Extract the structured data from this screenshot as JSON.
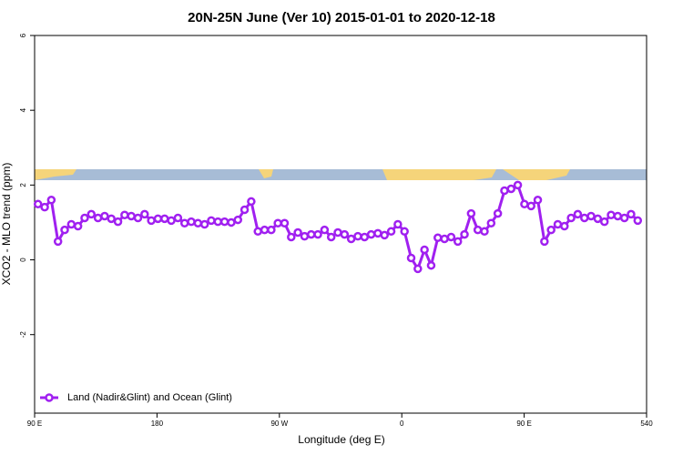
{
  "chart_data": {
    "type": "line",
    "title": "20N-25N June (Ver 10)   2015-01-01 to 2020-12-18",
    "x_label": "Longitude (deg E)",
    "y_label": "XCO2 - MLO trend (ppm)",
    "xlim": [
      90,
      540
    ],
    "xticks": [
      {
        "value": 90,
        "label": "90 E"
      },
      180,
      {
        "value": 270,
        "label": "90 W"
      },
      {
        "value": 360,
        "label": "0"
      },
      {
        "value": 450,
        "label": "90 E"
      },
      540
    ],
    "ylim": [
      -4.1,
      6
    ],
    "yticks": [
      -2,
      0,
      2,
      4,
      6
    ],
    "legend": "bottom-left",
    "series": [
      {
        "name": "Land (Nadir&Glint) and Ocean (Glint)",
        "color": "#a020f0",
        "x": [
          92.5,
          97.4,
          102.3,
          107.2,
          112.1,
          117,
          121.9,
          126.8,
          131.7,
          136.6,
          141.5,
          146.4,
          151.3,
          156.2,
          161.1,
          166,
          170.9,
          175.8,
          180.7,
          185.6,
          190.5,
          195.4,
          200.3,
          205.2,
          210.1,
          215,
          219.9,
          224.8,
          229.7,
          234.6,
          239.5,
          244.4,
          249.3,
          254.2,
          259.1,
          264,
          268.9,
          273.8,
          278.7,
          283.6,
          288.5,
          293.4,
          298.3,
          303.2,
          308.1,
          313,
          317.9,
          322.8,
          327.7,
          332.6,
          337.5,
          342.4,
          347.3,
          352.2,
          357.1,
          362,
          366.9,
          371.8,
          376.7,
          381.6,
          386.5,
          391.4,
          396.3,
          401.2,
          406.1,
          411,
          415.9,
          420.8,
          425.7,
          430.6,
          435.5,
          440.4,
          445.3,
          450.2,
          455.1,
          460,
          464.9,
          469.8,
          474.7,
          479.6,
          484.5,
          489.4,
          494.3,
          499.2,
          504.1,
          509,
          513.9,
          518.8,
          523.7,
          528.6,
          533.5
        ],
        "values": [
          1.49,
          1.41,
          1.6,
          0.49,
          0.8,
          0.95,
          0.9,
          1.12,
          1.22,
          1.12,
          1.17,
          1.1,
          1.02,
          1.2,
          1.17,
          1.12,
          1.22,
          1.05,
          1.1,
          1.1,
          1.05,
          1.12,
          0.98,
          1.02,
          0.98,
          0.95,
          1.05,
          1.02,
          1.02,
          1.0,
          1.07,
          1.34,
          1.56,
          0.76,
          0.8,
          0.8,
          0.98,
          0.98,
          0.61,
          0.73,
          0.63,
          0.68,
          0.68,
          0.8,
          0.61,
          0.73,
          0.68,
          0.56,
          0.63,
          0.61,
          0.68,
          0.71,
          0.66,
          0.76,
          0.95,
          0.76,
          0.05,
          -0.24,
          0.27,
          -0.15,
          0.59,
          0.56,
          0.61,
          0.49,
          0.68,
          1.24,
          0.8,
          0.76,
          0.98,
          1.24,
          1.85,
          1.9,
          2.0,
          1.49,
          1.44,
          1.6,
          0.49,
          0.8,
          0.95,
          0.9,
          1.12,
          1.22,
          1.12,
          1.17,
          1.1,
          1.02,
          1.2,
          1.17,
          1.12,
          1.22,
          1.05
        ]
      }
    ]
  }
}
